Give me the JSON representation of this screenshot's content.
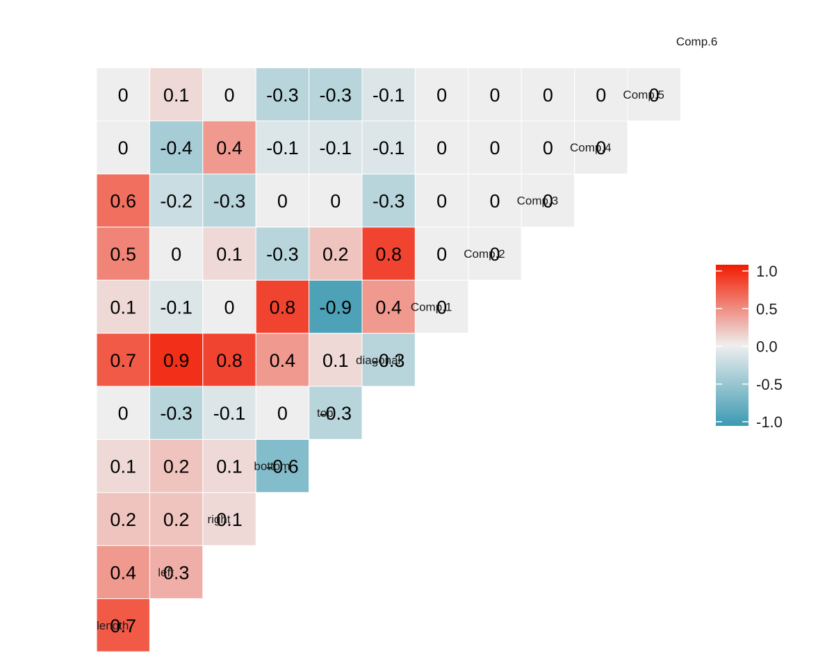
{
  "chart_data": {
    "type": "heatmap",
    "variables": [
      "length",
      "left",
      "right",
      "bottom",
      "top",
      "diagonal",
      "Comp.1",
      "Comp.2",
      "Comp.3",
      "Comp.4",
      "Comp.5",
      "Comp.6"
    ],
    "matrix_lower_triangle": [
      {
        "row": "left",
        "values": [
          0.7
        ]
      },
      {
        "row": "right",
        "values": [
          0.4,
          0.3
        ]
      },
      {
        "row": "bottom",
        "values": [
          0.2,
          0.2,
          0.1
        ]
      },
      {
        "row": "top",
        "values": [
          0.1,
          0.2,
          0.1,
          -0.6
        ]
      },
      {
        "row": "diagonal",
        "values": [
          0,
          -0.3,
          -0.1,
          0,
          -0.3
        ]
      },
      {
        "row": "Comp.1",
        "values": [
          0.7,
          0.9,
          0.8,
          0.4,
          0.1,
          -0.3
        ]
      },
      {
        "row": "Comp.2",
        "values": [
          0.1,
          -0.1,
          0,
          0.8,
          -0.9,
          0.4,
          0
        ]
      },
      {
        "row": "Comp.3",
        "values": [
          0.5,
          0,
          0.1,
          -0.3,
          0.2,
          0.8,
          0,
          0
        ]
      },
      {
        "row": "Comp.4",
        "values": [
          0.6,
          -0.2,
          -0.3,
          0,
          0,
          -0.3,
          0,
          0,
          0
        ]
      },
      {
        "row": "Comp.5",
        "values": [
          0,
          -0.4,
          0.4,
          -0.1,
          -0.1,
          -0.1,
          0,
          0,
          0,
          0
        ]
      },
      {
        "row": "Comp.6",
        "values": [
          0,
          0.1,
          0,
          -0.3,
          -0.3,
          -0.1,
          0,
          0,
          0,
          0,
          0
        ]
      }
    ],
    "color_scale": {
      "low": "#3B9AB2",
      "mid": "#EEEEEE",
      "high": "#F21A00",
      "limits": [
        -1.0,
        1.0
      ]
    },
    "legend": {
      "title": "",
      "position": "right",
      "ticks": [
        {
          "value": 1.0,
          "label": "1.0"
        },
        {
          "value": 0.5,
          "label": "0.5"
        },
        {
          "value": 0.0,
          "label": "0.0"
        },
        {
          "value": -0.5,
          "label": "-0.5"
        },
        {
          "value": -1.0,
          "label": "-1.0"
        }
      ]
    },
    "title": "",
    "xlabel": "",
    "ylabel": "",
    "grid": false
  }
}
